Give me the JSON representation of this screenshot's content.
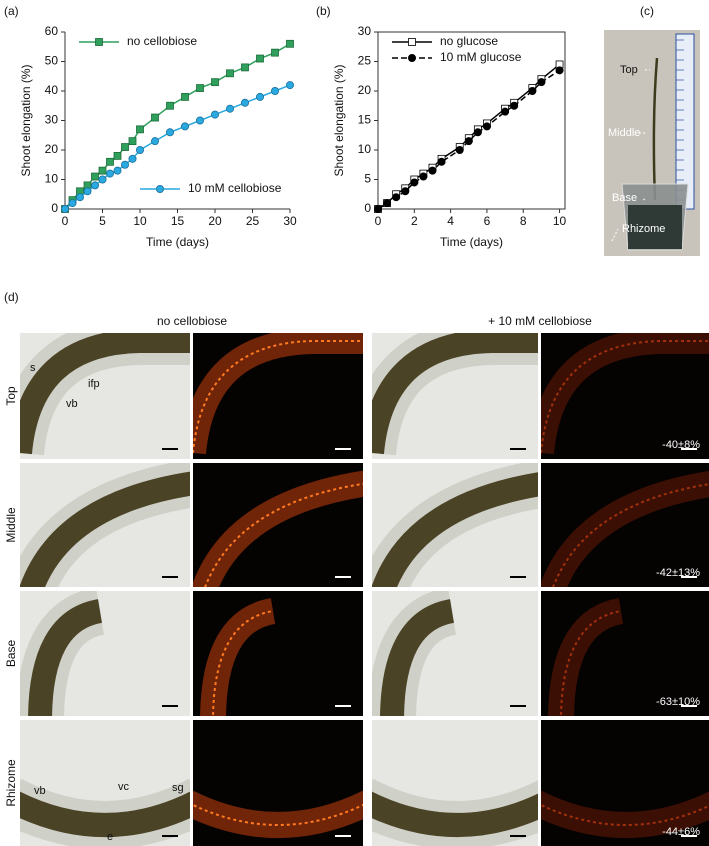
{
  "chart_data": [
    {
      "type": "scatter",
      "panel_label": "(a)",
      "x_label": "Time (days)",
      "y_label": "Shoot elongation (%)",
      "xlim": [
        0,
        30
      ],
      "xticks": [
        0,
        5,
        10,
        15,
        20,
        25,
        30
      ],
      "ylim": [
        0,
        60
      ],
      "yticks": [
        0,
        10,
        20,
        30,
        40,
        50,
        60
      ],
      "x": [
        0,
        1,
        2,
        3,
        4,
        5,
        6,
        7,
        8,
        9,
        10,
        12,
        14,
        16,
        18,
        20,
        22,
        24,
        26,
        28,
        30
      ],
      "series": [
        {
          "name": "no cellobiose",
          "color": "#2ea05c",
          "marker": "square",
          "line_style": "solid",
          "legend_position": "upper-left",
          "values": [
            0,
            3,
            6,
            8,
            11,
            13,
            16,
            18,
            21,
            23,
            27,
            31,
            35,
            38,
            41,
            43,
            46,
            48,
            51,
            53,
            56
          ]
        },
        {
          "name": "10 mM cellobiose",
          "color": "#2aa8e0",
          "marker": "circle",
          "line_style": "solid",
          "legend_position": "lower-right",
          "values": [
            0,
            2,
            4,
            6,
            8,
            10,
            12,
            13,
            15,
            17,
            20,
            23,
            26,
            28,
            30,
            32,
            34,
            36,
            38,
            40,
            42
          ]
        }
      ]
    },
    {
      "type": "scatter",
      "panel_label": "(b)",
      "x_label": "Time (days)",
      "y_label": "Shoot elongation (%)",
      "xlim": [
        0,
        10.3
      ],
      "xticks": [
        0,
        2,
        4,
        6,
        8,
        10
      ],
      "ylim": [
        0,
        30
      ],
      "yticks": [
        0,
        5,
        10,
        15,
        20,
        25,
        30
      ],
      "x": [
        0,
        0.5,
        1,
        1.5,
        2,
        2.5,
        3,
        3.5,
        4.5,
        5,
        5.5,
        6,
        7,
        7.5,
        8.5,
        9,
        10
      ],
      "series": [
        {
          "name": "no glucose",
          "color": "#000000",
          "marker": "open-square",
          "line_style": "solid",
          "legend_position": "upper-left",
          "values": [
            0,
            1,
            2.5,
            3.5,
            5,
            6,
            7,
            8.5,
            10.5,
            12,
            13.5,
            14.5,
            17,
            18,
            20.5,
            22,
            24.5
          ]
        },
        {
          "name": "10 mM glucose",
          "color": "#000000",
          "marker": "circle",
          "line_style": "dashed",
          "legend_position": "upper-left",
          "values": [
            0,
            1,
            2,
            3,
            4.5,
            5.5,
            6.5,
            8,
            10,
            11.5,
            13,
            14,
            16.5,
            17.5,
            20,
            21.5,
            23.5
          ]
        }
      ]
    }
  ],
  "panel_c": {
    "label": "(c)",
    "annotations": [
      "Top",
      "Middle",
      "Base",
      "Rhizome"
    ]
  },
  "panel_d": {
    "label": "(d)",
    "column_headings": [
      "no cellobiose",
      "+ 10 mM cellobiose"
    ],
    "row_labels": [
      "Top",
      "Middle",
      "Base",
      "Rhizome"
    ],
    "annotations": [
      "s",
      "ifp",
      "vb",
      "vb",
      "vc",
      "sg",
      "e"
    ],
    "reductions": [
      "-40±8%",
      "-42±13%",
      "-63±10%",
      "-44±6%"
    ]
  }
}
